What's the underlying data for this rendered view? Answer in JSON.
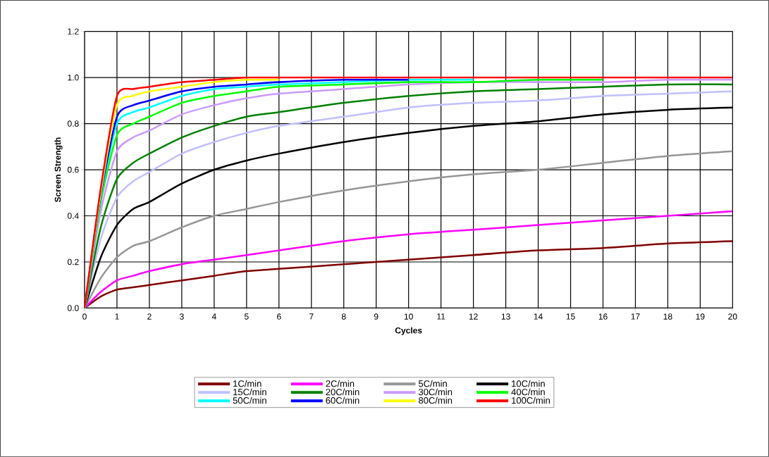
{
  "chart_data": {
    "type": "line",
    "xlabel": "Cycles",
    "ylabel": "Screen Strength",
    "x": [
      0,
      0.5,
      1,
      1.5,
      2,
      3,
      4,
      5,
      6,
      8,
      10,
      12,
      14,
      16,
      18,
      20
    ],
    "xlim": [
      0,
      20
    ],
    "xticks": [
      0,
      1,
      2,
      3,
      4,
      5,
      6,
      7,
      8,
      9,
      10,
      11,
      12,
      13,
      14,
      15,
      16,
      17,
      18,
      19,
      20
    ],
    "ylim": [
      0,
      1.2
    ],
    "yticks": [
      {
        "value": 0,
        "label": "0.0"
      },
      {
        "value": 0.2,
        "label": "0.2"
      },
      {
        "value": 0.4,
        "label": "0.4"
      },
      {
        "value": 0.6,
        "label": "0.6"
      },
      {
        "value": 0.8,
        "label": "0.8"
      },
      {
        "value": 1.0,
        "label": "1.0"
      },
      {
        "value": 1.2,
        "label": "1.2"
      }
    ],
    "grid": true,
    "legend": "bottom",
    "series": [
      {
        "name": "1C/min",
        "color": "#800000",
        "values": [
          0,
          0.05,
          0.08,
          0.09,
          0.1,
          0.12,
          0.14,
          0.16,
          0.17,
          0.19,
          0.21,
          0.23,
          0.25,
          0.26,
          0.28,
          0.29
        ]
      },
      {
        "name": "2C/min",
        "color": "#ff00ff",
        "values": [
          0,
          0.07,
          0.12,
          0.14,
          0.16,
          0.19,
          0.21,
          0.23,
          0.25,
          0.29,
          0.32,
          0.34,
          0.36,
          0.38,
          0.4,
          0.42
        ]
      },
      {
        "name": "5C/min",
        "color": "#969696",
        "values": [
          0,
          0.13,
          0.22,
          0.27,
          0.29,
          0.35,
          0.4,
          0.43,
          0.46,
          0.51,
          0.55,
          0.58,
          0.6,
          0.63,
          0.66,
          0.68
        ]
      },
      {
        "name": "10C/min",
        "color": "#000000",
        "values": [
          0,
          0.22,
          0.36,
          0.43,
          0.46,
          0.54,
          0.6,
          0.64,
          0.67,
          0.72,
          0.76,
          0.79,
          0.81,
          0.84,
          0.86,
          0.87
        ]
      },
      {
        "name": "15C/min",
        "color": "#c0c0ff",
        "values": [
          0,
          0.3,
          0.48,
          0.55,
          0.59,
          0.67,
          0.72,
          0.76,
          0.79,
          0.83,
          0.87,
          0.89,
          0.9,
          0.92,
          0.93,
          0.94
        ]
      },
      {
        "name": "20C/min",
        "color": "#008000",
        "values": [
          0,
          0.35,
          0.56,
          0.63,
          0.67,
          0.74,
          0.79,
          0.83,
          0.85,
          0.89,
          0.92,
          0.94,
          0.95,
          0.96,
          0.97,
          0.97
        ]
      },
      {
        "name": "30C/min",
        "color": "#cc99ff",
        "values": [
          0,
          0.42,
          0.68,
          0.74,
          0.77,
          0.84,
          0.88,
          0.91,
          0.93,
          0.95,
          0.97,
          0.98,
          0.98,
          0.98,
          0.99,
          0.99
        ]
      },
      {
        "name": "40C/min",
        "color": "#00ff00",
        "values": [
          0,
          0.46,
          0.75,
          0.8,
          0.83,
          0.89,
          0.92,
          0.94,
          0.96,
          0.97,
          0.98,
          0.98,
          0.99,
          0.99,
          null,
          null
        ]
      },
      {
        "name": "50C/min",
        "color": "#00ffff",
        "values": [
          0,
          0.48,
          0.8,
          0.85,
          0.87,
          0.92,
          0.95,
          0.96,
          0.97,
          0.98,
          0.99,
          0.99,
          null,
          null,
          null,
          null
        ]
      },
      {
        "name": "60C/min",
        "color": "#0000ff",
        "values": [
          0,
          0.49,
          0.83,
          0.88,
          0.9,
          0.94,
          0.96,
          0.97,
          0.98,
          0.99,
          0.99,
          null,
          null,
          null,
          null,
          null
        ]
      },
      {
        "name": "80C/min",
        "color": "#ffff00",
        "values": [
          0,
          0.5,
          0.88,
          0.92,
          0.94,
          0.96,
          0.98,
          0.99,
          0.99,
          null,
          null,
          null,
          null,
          null,
          null,
          null
        ]
      },
      {
        "name": "100C/min",
        "color": "#ff0000",
        "values": [
          0,
          0.52,
          0.92,
          0.95,
          0.96,
          0.98,
          0.99,
          1.0,
          1.0,
          1.0,
          1.0,
          1.0,
          1.0,
          1.0,
          1.0,
          1.0
        ]
      }
    ]
  }
}
